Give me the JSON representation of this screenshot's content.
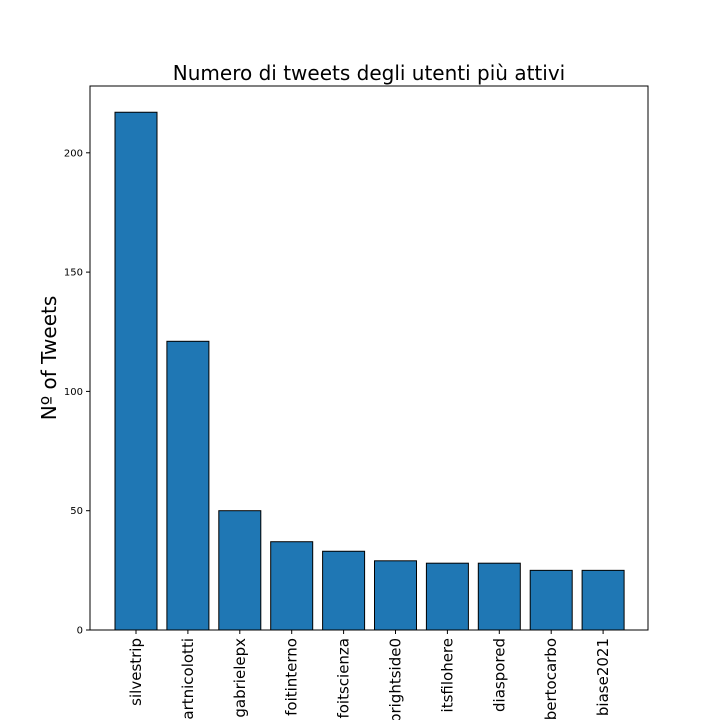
{
  "chart_data": {
    "type": "bar",
    "title": "Numero di tweets degli utenti più attivi",
    "xlabel": "",
    "ylabel": "Nº of Tweets",
    "categories": [
      "silvestrip",
      "artnicolotti",
      "gabrielepx",
      "foitinterno",
      "foitscienza",
      "brightside0",
      "itsfilohere",
      "diaspored",
      "bertocarbo",
      "biase2021"
    ],
    "values": [
      217,
      121,
      50,
      37,
      33,
      29,
      28,
      28,
      25,
      25
    ],
    "ylim": [
      0,
      228
    ],
    "yticks": [
      0,
      50,
      100,
      150,
      200
    ],
    "bar_color": "#1f77b4",
    "edge_color": "#000000",
    "grid": false,
    "legend": "none"
  }
}
